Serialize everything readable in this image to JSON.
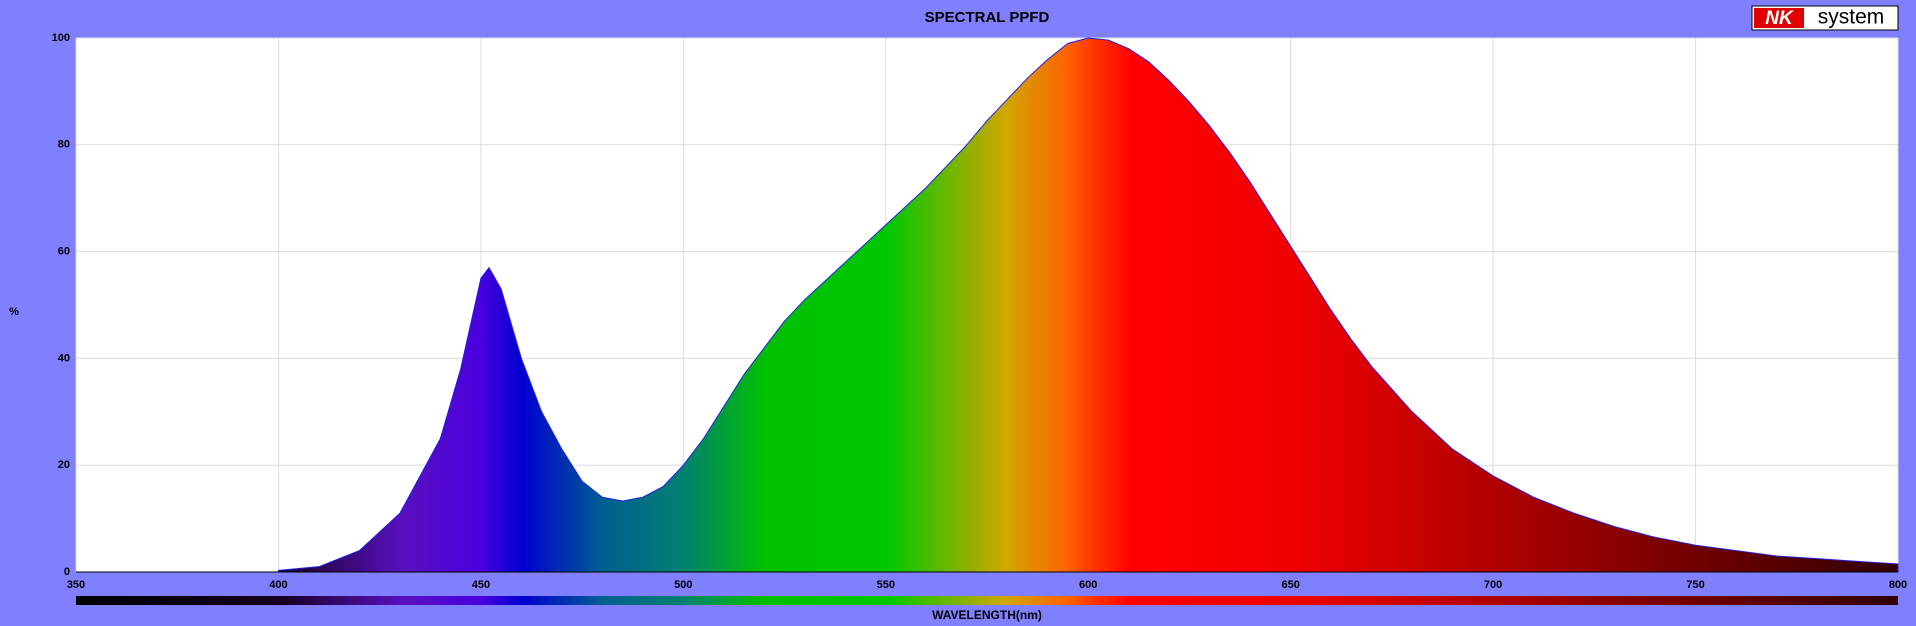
{
  "chart_data": {
    "type": "area",
    "title": "SPECTRAL PPFD",
    "logo": {
      "left": "NK",
      "right": "system"
    },
    "x_label": "WAVELENGTH(nm)",
    "y_label": "%",
    "x": [
      400,
      410,
      420,
      430,
      440,
      445,
      450,
      452,
      455,
      460,
      465,
      470,
      475,
      480,
      485,
      490,
      495,
      500,
      505,
      510,
      515,
      520,
      525,
      530,
      535,
      540,
      545,
      550,
      555,
      560,
      565,
      570,
      575,
      580,
      585,
      590,
      595,
      600,
      605,
      610,
      615,
      620,
      625,
      630,
      635,
      640,
      645,
      650,
      655,
      660,
      665,
      670,
      680,
      690,
      700,
      710,
      720,
      730,
      740,
      750,
      760,
      770,
      780,
      790,
      800
    ],
    "series": [
      {
        "color": "#2020e0",
        "values": [
          0.3,
          1,
          4,
          11,
          25,
          38,
          55,
          57,
          53,
          40,
          30,
          23,
          17,
          14,
          13.3,
          14,
          16,
          20,
          25,
          31,
          37,
          42,
          47,
          51,
          54.5,
          58,
          61.5,
          65,
          68.5,
          72,
          76,
          80,
          84.5,
          88.5,
          92.5,
          96,
          99,
          100,
          99.6,
          98,
          95.5,
          92,
          88,
          83.5,
          78.5,
          73,
          67,
          61,
          55,
          49,
          43.5,
          38.5,
          30,
          23,
          18,
          14,
          11,
          8.5,
          6.5,
          5,
          4,
          3,
          2.5,
          2,
          1.5
        ]
      }
    ],
    "xlim": [
      350,
      800
    ],
    "xticks": [
      350,
      400,
      450,
      500,
      550,
      600,
      650,
      700,
      750,
      800
    ],
    "ylim": [
      0,
      100
    ],
    "yticks": [
      0,
      20,
      40,
      60,
      80,
      100
    ],
    "grid": true
  }
}
